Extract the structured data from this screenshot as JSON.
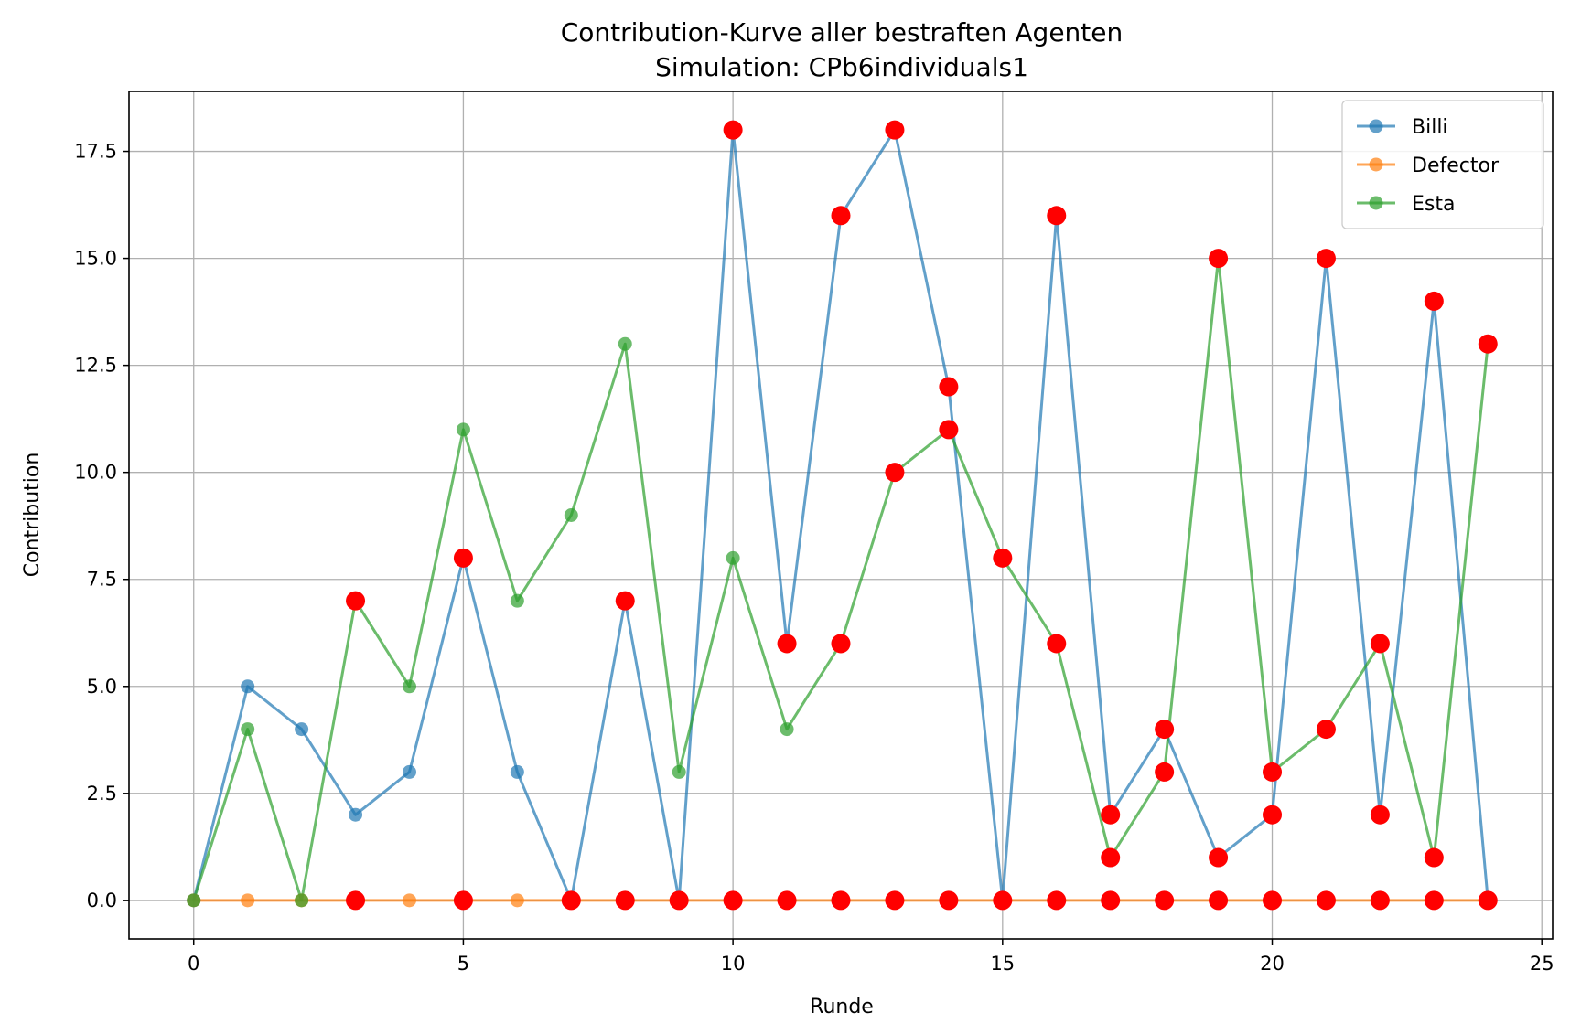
{
  "chart_data": {
    "type": "line",
    "title": "Contribution-Kurve aller bestraften Agenten",
    "subtitle": "Simulation: CPb6individuals1",
    "xlabel": "Runde",
    "ylabel": "Contribution",
    "xlim": [
      -1.2,
      25.2
    ],
    "ylim": [
      -0.9,
      18.9
    ],
    "xticks": [
      0,
      5,
      10,
      15,
      20,
      25
    ],
    "yticks": [
      0.0,
      2.5,
      5.0,
      7.5,
      10.0,
      12.5,
      15.0,
      17.5
    ],
    "xtick_labels": [
      "0",
      "5",
      "10",
      "15",
      "20",
      "25"
    ],
    "ytick_labels": [
      "0.0",
      "2.5",
      "5.0",
      "7.5",
      "10.0",
      "12.5",
      "15.0",
      "17.5"
    ],
    "grid": true,
    "legend_position": "top-right",
    "x": [
      0,
      1,
      2,
      3,
      4,
      5,
      6,
      7,
      8,
      9,
      10,
      11,
      12,
      13,
      14,
      15,
      16,
      17,
      18,
      19,
      20,
      21,
      22,
      23,
      24
    ],
    "series": [
      {
        "name": "Billi",
        "color": "#1f77b4",
        "values": [
          0,
          5,
          4,
          2,
          3,
          8,
          3,
          0,
          7,
          0,
          18,
          6,
          16,
          18,
          12,
          0,
          16,
          2,
          4,
          1,
          2,
          15,
          2,
          14,
          0
        ]
      },
      {
        "name": "Defector",
        "color": "#ff7f0e",
        "values": [
          0,
          0,
          0,
          0,
          0,
          0,
          0,
          0,
          0,
          0,
          0,
          0,
          0,
          0,
          0,
          0,
          0,
          0,
          0,
          0,
          0,
          0,
          0,
          0,
          0
        ]
      },
      {
        "name": "Esta",
        "color": "#2ca02c",
        "values": [
          0,
          4,
          0,
          7,
          5,
          11,
          7,
          9,
          13,
          3,
          8,
          4,
          6,
          10,
          11,
          8,
          6,
          1,
          3,
          15,
          3,
          4,
          6,
          1,
          13
        ]
      }
    ],
    "punished_marker_color": "#ff0000",
    "punished_points": [
      {
        "x": 3,
        "y": 7
      },
      {
        "x": 3,
        "y": 0
      },
      {
        "x": 5,
        "y": 8
      },
      {
        "x": 5,
        "y": 0
      },
      {
        "x": 7,
        "y": 0
      },
      {
        "x": 8,
        "y": 7
      },
      {
        "x": 8,
        "y": 0
      },
      {
        "x": 9,
        "y": 0
      },
      {
        "x": 10,
        "y": 18
      },
      {
        "x": 10,
        "y": 0
      },
      {
        "x": 11,
        "y": 6
      },
      {
        "x": 11,
        "y": 0
      },
      {
        "x": 12,
        "y": 16
      },
      {
        "x": 12,
        "y": 6
      },
      {
        "x": 12,
        "y": 0
      },
      {
        "x": 13,
        "y": 18
      },
      {
        "x": 13,
        "y": 10
      },
      {
        "x": 13,
        "y": 0
      },
      {
        "x": 14,
        "y": 12
      },
      {
        "x": 14,
        "y": 11
      },
      {
        "x": 14,
        "y": 0
      },
      {
        "x": 15,
        "y": 8
      },
      {
        "x": 15,
        "y": 0
      },
      {
        "x": 16,
        "y": 16
      },
      {
        "x": 16,
        "y": 6
      },
      {
        "x": 16,
        "y": 0
      },
      {
        "x": 17,
        "y": 2
      },
      {
        "x": 17,
        "y": 1
      },
      {
        "x": 17,
        "y": 0
      },
      {
        "x": 18,
        "y": 4
      },
      {
        "x": 18,
        "y": 3
      },
      {
        "x": 18,
        "y": 0
      },
      {
        "x": 19,
        "y": 15
      },
      {
        "x": 19,
        "y": 1
      },
      {
        "x": 19,
        "y": 0
      },
      {
        "x": 20,
        "y": 3
      },
      {
        "x": 20,
        "y": 2
      },
      {
        "x": 20,
        "y": 0
      },
      {
        "x": 21,
        "y": 15
      },
      {
        "x": 21,
        "y": 4
      },
      {
        "x": 21,
        "y": 0
      },
      {
        "x": 22,
        "y": 6
      },
      {
        "x": 22,
        "y": 2
      },
      {
        "x": 22,
        "y": 0
      },
      {
        "x": 23,
        "y": 14
      },
      {
        "x": 23,
        "y": 1
      },
      {
        "x": 23,
        "y": 0
      },
      {
        "x": 24,
        "y": 13
      },
      {
        "x": 24,
        "y": 0
      }
    ]
  }
}
